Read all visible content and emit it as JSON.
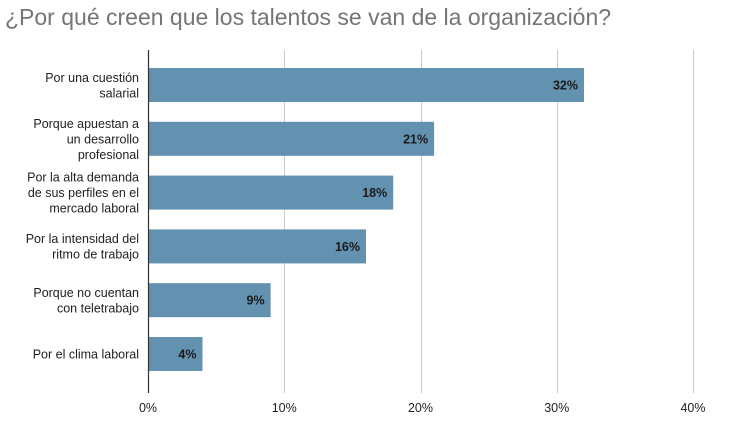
{
  "chart_data": {
    "type": "bar",
    "orientation": "horizontal",
    "title": "¿Por qué creen que los talentos se van de la organización?",
    "categories": [
      [
        "Por una cuestión",
        "salarial"
      ],
      [
        "Porque apuestan a",
        "un desarrollo",
        "profesional"
      ],
      [
        "Por la alta demanda",
        "de sus perfiles en el",
        "mercado laboral"
      ],
      [
        "Por la intensidad del",
        "ritmo de trabajo"
      ],
      [
        "Porque no cuentan",
        "con teletrabajo"
      ],
      [
        "Por el clima laboral"
      ]
    ],
    "values": [
      32,
      21,
      18,
      16,
      9,
      4
    ],
    "data_labels": [
      "32%",
      "21%",
      "18%",
      "16%",
      "9%",
      "4%"
    ],
    "xlim": [
      0,
      40
    ],
    "x_ticks": [
      0,
      10,
      20,
      30,
      40
    ],
    "x_tick_labels": [
      "0%",
      "10%",
      "20%",
      "30%",
      "40%"
    ],
    "xlabel": "",
    "ylabel": "",
    "grid": "vertical",
    "legend": "none",
    "bar_color": "#6391b0",
    "grid_color": "#cccccc",
    "axis_color": "#333333",
    "title_color": "#757575"
  }
}
